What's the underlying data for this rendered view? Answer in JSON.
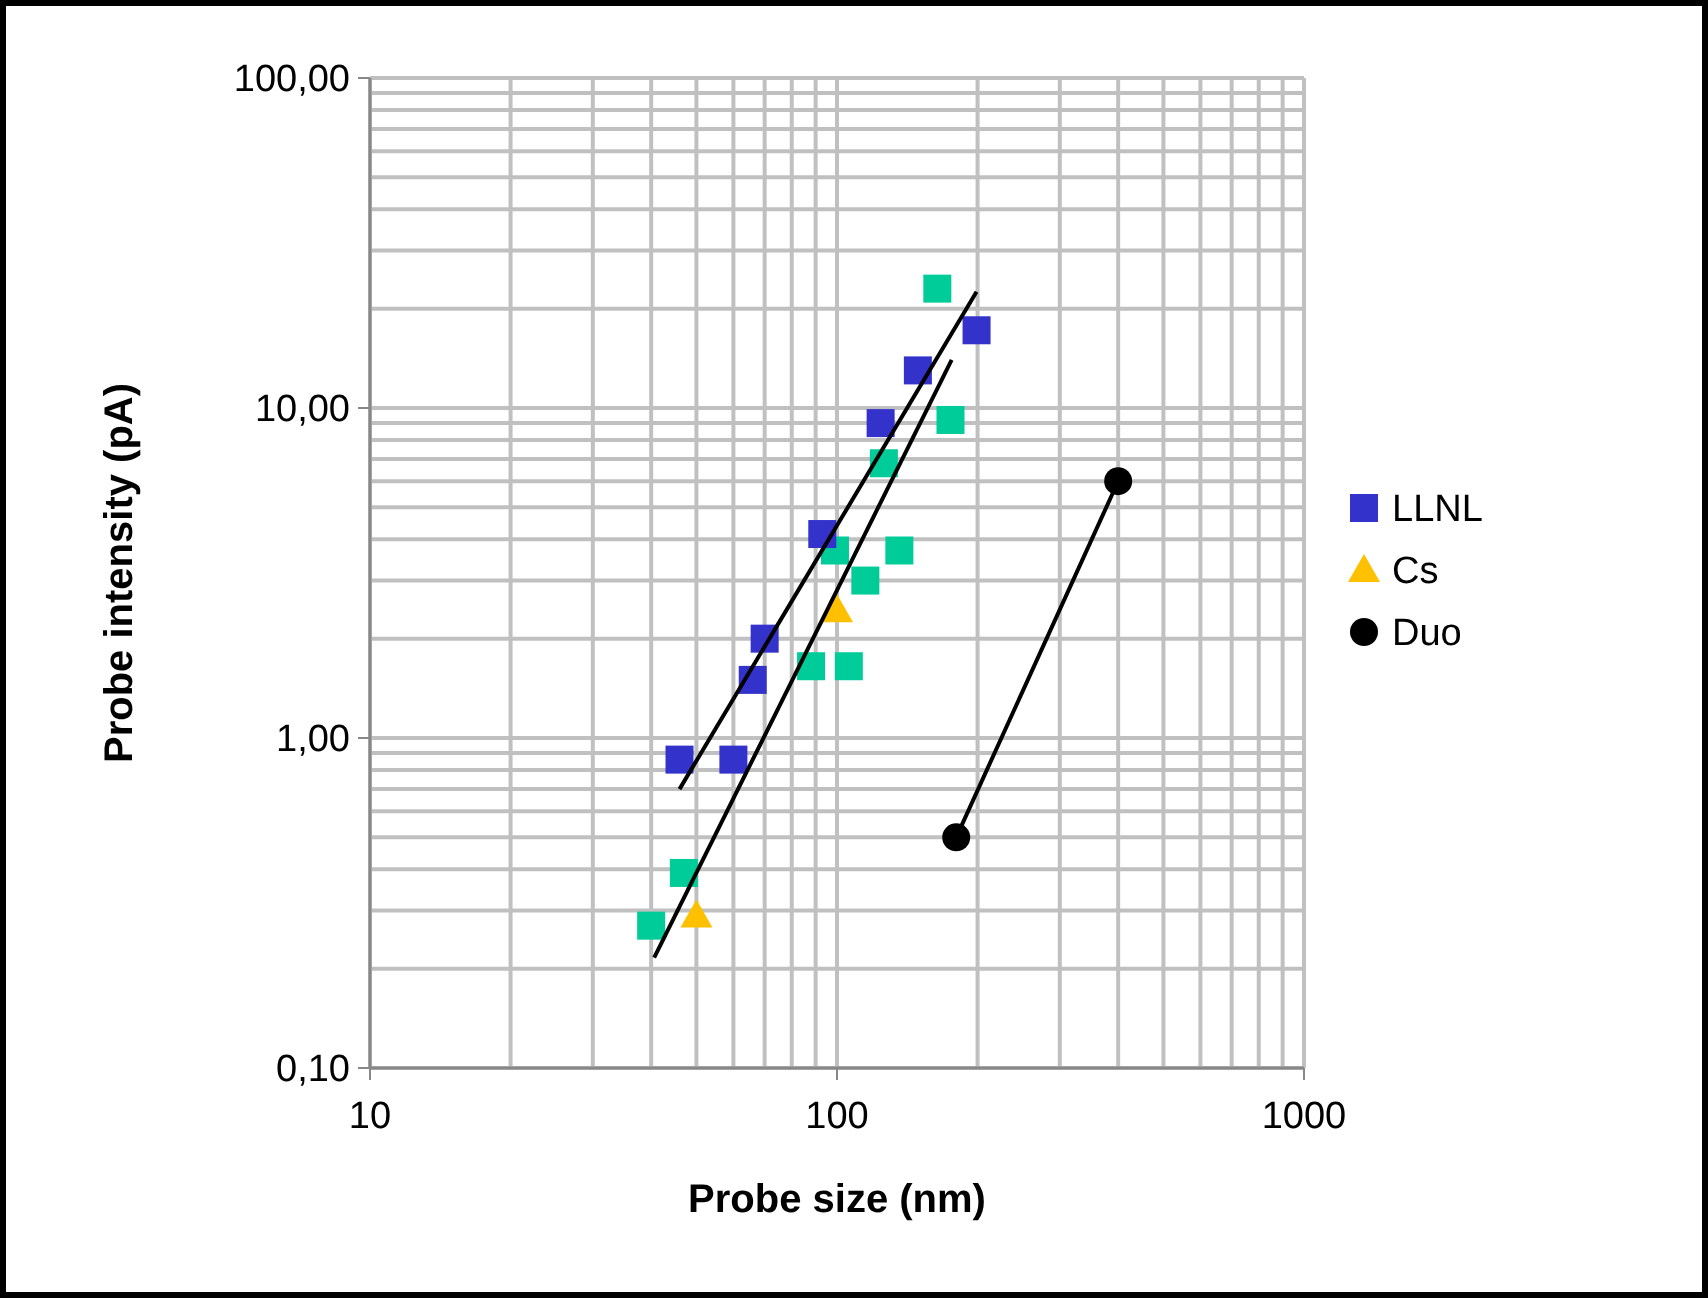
{
  "chart_data": {
    "type": "scatter",
    "xlabel": "Probe size (nm)",
    "ylabel": "Probe intensity (pA)",
    "log": "xy",
    "grid": true,
    "legend": "right",
    "xlim": [
      10,
      1000
    ],
    "xticks": [
      10,
      100,
      1000
    ],
    "ylim": [
      0.1,
      100
    ],
    "yticks": [
      {
        "value": 0.1,
        "label": "0,10"
      },
      {
        "value": 1,
        "label": "1,00"
      },
      {
        "value": 10,
        "label": "10,00"
      },
      {
        "value": 100,
        "label": "100,00"
      }
    ],
    "series": [
      {
        "color": "#00cc99",
        "marker": "square",
        "x": [
          40,
          47,
          88,
          106,
          99,
          115,
          136,
          126,
          128,
          175,
          164
        ],
        "values": [
          0.27,
          0.39,
          1.65,
          1.65,
          3.7,
          3.0,
          3.7,
          6.8,
          null,
          9.2,
          23
        ]
      },
      {
        "name": "LLNL",
        "color": "#3333cc",
        "marker": "square",
        "x": [
          46,
          60,
          66,
          70,
          93,
          124,
          149,
          199
        ],
        "values": [
          0.86,
          0.86,
          1.5,
          2.0,
          4.15,
          9.0,
          13,
          17.2
        ]
      },
      {
        "name": "Cs",
        "color": "#ffc000",
        "marker": "triangle",
        "x": [
          50,
          100
        ],
        "values": [
          0.29,
          2.44
        ]
      },
      {
        "name": "Duo",
        "color": "#000000",
        "marker": "circle",
        "x": [
          180,
          400
        ],
        "values": [
          0.5,
          6
        ]
      },
      {
        "type": "line",
        "color": "#000000",
        "marker": "none",
        "x": [
          46,
          199
        ],
        "values": [
          0.7,
          22.5
        ]
      },
      {
        "type": "line",
        "color": "#000000",
        "marker": "none",
        "x": [
          40.6,
          176
        ],
        "values": [
          0.216,
          14
        ]
      },
      {
        "type": "line",
        "color": "#000000",
        "marker": "none",
        "x": [
          180,
          400
        ],
        "values": [
          0.5,
          6
        ]
      }
    ]
  }
}
